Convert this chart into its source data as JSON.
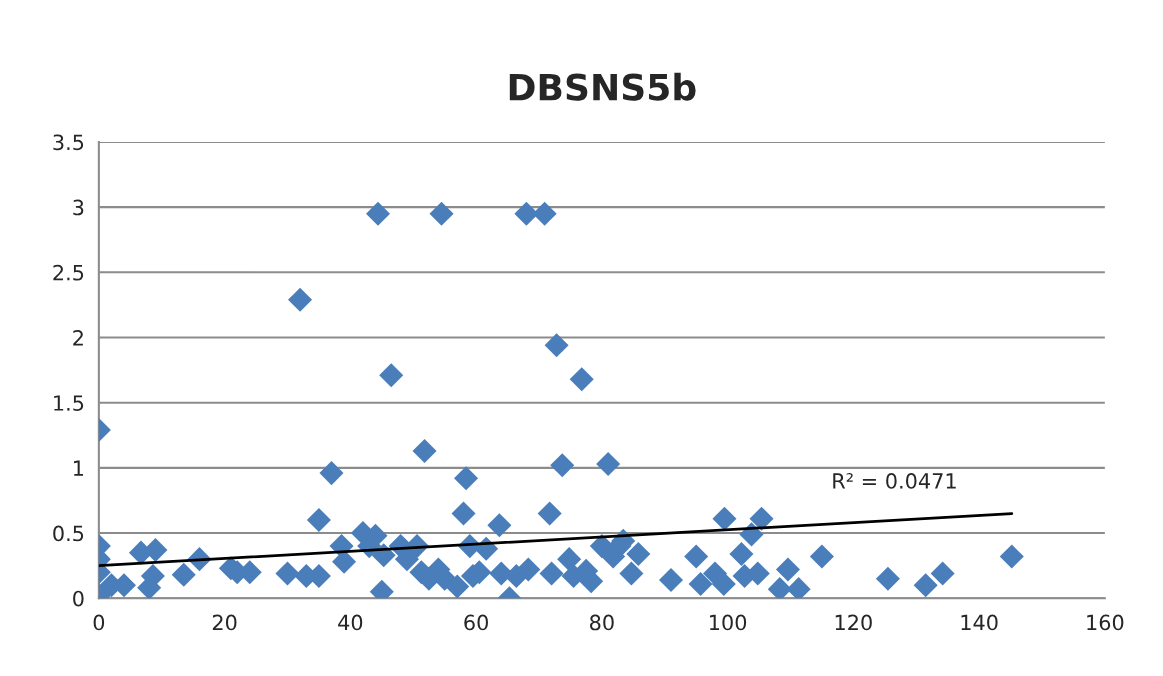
{
  "chart_data": {
    "type": "scatter",
    "title": "DBSNS5b",
    "xlim": [
      0,
      160
    ],
    "xticks": [
      0,
      20,
      40,
      60,
      80,
      100,
      120,
      140,
      160
    ],
    "ylim": [
      0,
      3.5
    ],
    "yticks": [
      0,
      0.5,
      1,
      1.5,
      2,
      2.5,
      3,
      3.5
    ],
    "grid": "y",
    "legend": false,
    "marker": "diamond",
    "annotations": [
      "R² = 0.0471"
    ],
    "series": [
      {
        "color": "#4a7ebb",
        "x": [
          0,
          0,
          0,
          0,
          0,
          2,
          4,
          6.7,
          8,
          8.6,
          9,
          13.5,
          16,
          21,
          22,
          24,
          30,
          32,
          33,
          35,
          35,
          37,
          38.6,
          39,
          42,
          43,
          44,
          44.4,
          45,
          45.3,
          46.5,
          48,
          49,
          50.6,
          51.3,
          51.8,
          52.5,
          54,
          54.5,
          55,
          57,
          58,
          58.4,
          59,
          59.5,
          60.5,
          61.6,
          63.7,
          64,
          65.3,
          66.4,
          68,
          68.3,
          70.9,
          71.7,
          72,
          72.8,
          73.7,
          74.8,
          75.5,
          76.8,
          77.5,
          78.3,
          80,
          81,
          81.8,
          82.8,
          83.4,
          84.7,
          85.8,
          91,
          95,
          95.7,
          98,
          99.4,
          99.5,
          102.2,
          102.7,
          103.8,
          104.8,
          105.4,
          108.3,
          109.6,
          111.3,
          115,
          125.5,
          131.5,
          134.2,
          145.2
        ],
        "values": [
          0.02,
          0.2,
          0.3,
          0.4,
          1.29,
          0.1,
          0.1,
          0.35,
          0.08,
          0.17,
          0.37,
          0.18,
          0.3,
          0.23,
          0.2,
          0.2,
          0.19,
          2.29,
          0.17,
          0.17,
          0.6,
          0.96,
          0.4,
          0.28,
          0.5,
          0.4,
          0.48,
          2.95,
          0.05,
          0.33,
          1.71,
          0.4,
          0.3,
          0.4,
          0.2,
          1.13,
          0.15,
          0.22,
          2.95,
          0.15,
          0.09,
          0.65,
          0.92,
          0.4,
          0.17,
          0.2,
          0.38,
          0.56,
          0.19,
          0.0,
          0.17,
          2.95,
          0.22,
          2.95,
          0.65,
          0.19,
          1.94,
          1.02,
          0.3,
          0.17,
          1.68,
          0.21,
          0.13,
          0.4,
          1.03,
          0.32,
          0.4,
          0.44,
          0.19,
          0.34,
          0.14,
          0.32,
          0.11,
          0.19,
          0.11,
          0.61,
          0.34,
          0.17,
          0.49,
          0.19,
          0.61,
          0.07,
          0.22,
          0.07,
          0.32,
          0.15,
          0.1,
          0.19,
          0.32
        ]
      },
      {
        "type": "line",
        "color": "#000000",
        "marker": "none",
        "line_style": "solid",
        "x": [
          0,
          145.2
        ],
        "values": [
          0.25,
          0.65
        ]
      }
    ]
  }
}
